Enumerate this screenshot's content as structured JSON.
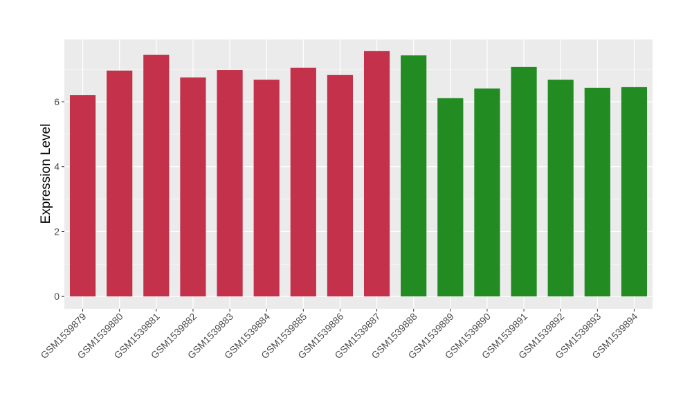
{
  "chart_data": {
    "type": "bar",
    "title": "",
    "xlabel": "",
    "ylabel": "Expression Level",
    "categories": [
      "GSM1539879",
      "GSM1539880",
      "GSM1539881",
      "GSM1539882",
      "GSM1539883",
      "GSM1539884",
      "GSM1539885",
      "GSM1539886",
      "GSM1539887",
      "GSM1539888",
      "GSM1539889",
      "GSM1539890",
      "GSM1539891",
      "GSM1539892",
      "GSM1539893",
      "GSM1539894"
    ],
    "values": [
      6.21,
      6.96,
      7.45,
      6.75,
      6.98,
      6.68,
      7.05,
      6.83,
      7.56,
      7.43,
      6.11,
      6.41,
      7.07,
      6.68,
      6.43,
      6.45
    ],
    "bar_colors": [
      "#c3314a",
      "#c3314a",
      "#c3314a",
      "#c3314a",
      "#c3314a",
      "#c3314a",
      "#c3314a",
      "#c3314a",
      "#c3314a",
      "#228b22",
      "#228b22",
      "#228b22",
      "#228b22",
      "#228b22",
      "#228b22",
      "#228b22"
    ],
    "yticks": [
      0,
      2,
      4,
      6
    ],
    "ylim": [
      -0.38,
      7.92
    ],
    "grid": true,
    "legend": "none",
    "panel_background": "#ebebeb"
  }
}
